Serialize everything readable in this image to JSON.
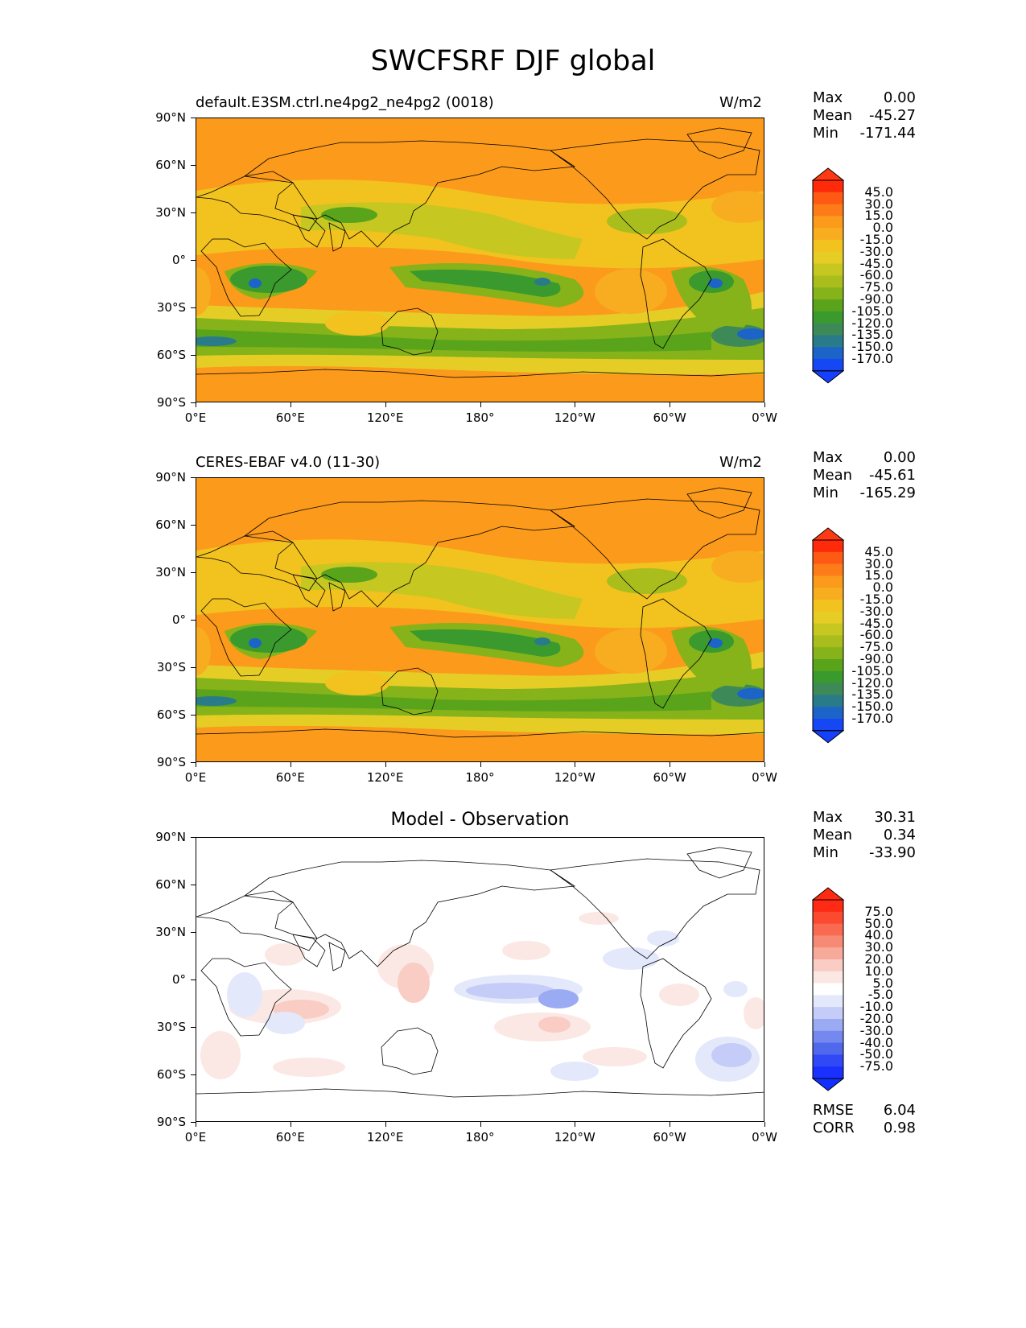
{
  "title": "SWCFSRF DJF global",
  "axes": {
    "lat_ticks": [
      "90°N",
      "60°N",
      "30°N",
      "0°",
      "30°S",
      "60°S",
      "90°S"
    ],
    "lon_ticks": [
      "0°E",
      "60°E",
      "120°E",
      "180°",
      "120°W",
      "60°W",
      "0°W"
    ]
  },
  "colors": {
    "ocean_fill": "#f5a623",
    "coast": "#000000"
  },
  "panels": [
    {
      "name": "model",
      "label_left": "default.E3SM.ctrl.ne4pg2_ne4pg2 (0018)",
      "label_right": "W/m2",
      "center_title": "",
      "stats": {
        "max_label": "Max",
        "max": "0.00",
        "mean_label": "Mean",
        "mean": "-45.27",
        "min_label": "Min",
        "min": "-171.44"
      },
      "colorbar": {
        "levels": [
          "45.0",
          "30.0",
          "15.0",
          "0.0",
          "-15.0",
          "-30.0",
          "-45.0",
          "-60.0",
          "-75.0",
          "-90.0",
          "-105.0",
          "-120.0",
          "-135.0",
          "-150.0",
          "-170.0"
        ],
        "colors": [
          "#ff2a0a",
          "#ff5a14",
          "#fd7b18",
          "#fb9a1b",
          "#f8ad20",
          "#f2c21f",
          "#e6cd26",
          "#c7c722",
          "#a9be1d",
          "#86b31a",
          "#5aa41c",
          "#3a9a2e",
          "#3d8a58",
          "#2a7b8a",
          "#1c64c8",
          "#1547f5"
        ],
        "over_color": "#ff3a12",
        "under_color": "#1540ff"
      }
    },
    {
      "name": "observation",
      "label_left": "CERES-EBAF v4.0 (11-30)",
      "label_right": "W/m2",
      "center_title": "",
      "stats": {
        "max_label": "Max",
        "max": "0.00",
        "mean_label": "Mean",
        "mean": "-45.61",
        "min_label": "Min",
        "min": "-165.29"
      },
      "colorbar": {
        "levels": [
          "45.0",
          "30.0",
          "15.0",
          "0.0",
          "-15.0",
          "-30.0",
          "-45.0",
          "-60.0",
          "-75.0",
          "-90.0",
          "-105.0",
          "-120.0",
          "-135.0",
          "-150.0",
          "-170.0"
        ],
        "colors": [
          "#ff2a0a",
          "#ff5a14",
          "#fd7b18",
          "#fb9a1b",
          "#f8ad20",
          "#f2c21f",
          "#e6cd26",
          "#c7c722",
          "#a9be1d",
          "#86b31a",
          "#5aa41c",
          "#3a9a2e",
          "#3d8a58",
          "#2a7b8a",
          "#1c64c8",
          "#1547f5"
        ],
        "over_color": "#ff3a12",
        "under_color": "#1540ff"
      }
    },
    {
      "name": "difference",
      "label_left": "",
      "label_right": "",
      "center_title": "Model - Observation",
      "stats": {
        "max_label": "Max",
        "max": "30.31",
        "mean_label": "Mean",
        "mean": "0.34",
        "min_label": "Min",
        "min": "-33.90"
      },
      "metrics": {
        "rmse_label": "RMSE",
        "rmse": "6.04",
        "corr_label": "CORR",
        "corr": "0.98"
      },
      "colorbar": {
        "levels": [
          "75.0",
          "50.0",
          "40.0",
          "30.0",
          "20.0",
          "10.0",
          "5.0",
          "-5.0",
          "-10.0",
          "-20.0",
          "-30.0",
          "-40.0",
          "-50.0",
          "-75.0"
        ],
        "colors": [
          "#ff2a14",
          "#fb4a30",
          "#f96a50",
          "#f78a74",
          "#f7aa9a",
          "#f9ccc4",
          "#fbe8e4",
          "#ffffff",
          "#e4e8fb",
          "#c4ccf7",
          "#9aaaf3",
          "#7488ef",
          "#5068eb",
          "#3048f5",
          "#1a30ff"
        ],
        "over_color": "#ff2a10",
        "under_color": "#1030ff"
      }
    }
  ]
}
